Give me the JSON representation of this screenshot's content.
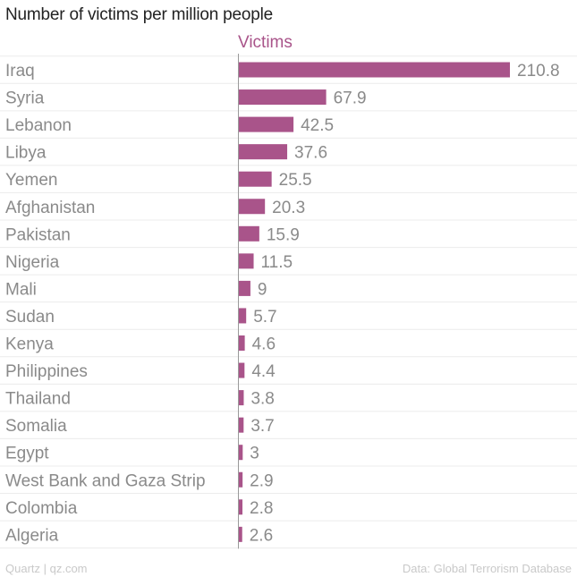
{
  "chart_data": {
    "type": "bar",
    "orientation": "horizontal",
    "title": "Number of victims per million people",
    "series": [
      {
        "name": "Victims",
        "values": [
          210.8,
          67.9,
          42.5,
          37.6,
          25.5,
          20.3,
          15.9,
          11.5,
          9,
          5.7,
          4.6,
          4.4,
          3.8,
          3.7,
          3,
          2.9,
          2.8,
          2.6
        ],
        "labels": [
          "210.8",
          "67.9",
          "42.5",
          "37.6",
          "25.5",
          "20.3",
          "15.9",
          "11.5",
          "9",
          "5.7",
          "4.6",
          "4.4",
          "3.8",
          "3.7",
          "3",
          "2.9",
          "2.8",
          "2.6"
        ]
      }
    ],
    "categories": [
      "Iraq",
      "Syria",
      "Lebanon",
      "Libya",
      "Yemen",
      "Afghanistan",
      "Pakistan",
      "Nigeria",
      "Mali",
      "Sudan",
      "Kenya",
      "Philippines",
      "Thailand",
      "Somalia",
      "Egypt",
      "West Bank and Gaza Strip",
      "Colombia",
      "Algeria"
    ],
    "xlim": [
      0,
      210.8
    ],
    "grid": true,
    "bar_color": "#a9548a"
  },
  "footer": {
    "source_left": "Quartz | qz.com",
    "source_right": "Data: Global Terrorism Database"
  }
}
